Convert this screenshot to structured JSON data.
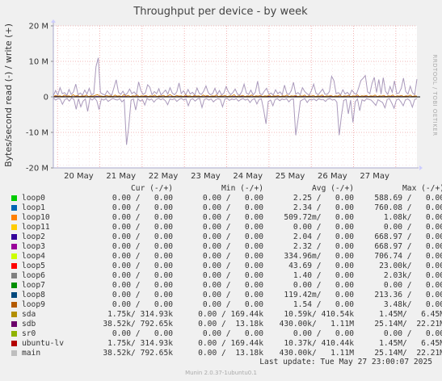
{
  "chart_data": {
    "type": "line",
    "title": "Throughput per device - by week",
    "ylabel": "Bytes/second read (-) / write (+)",
    "side_label": "RRDTOOL / TOBI OETIKER",
    "ylim": [
      -20000000,
      20000000
    ],
    "yticks": [
      {
        "label": "20 M",
        "value": 20000000
      },
      {
        "label": "10 M",
        "value": 10000000
      },
      {
        "label": "0",
        "value": 0
      },
      {
        "label": "-10 M",
        "value": -10000000
      },
      {
        "label": "-20 M",
        "value": -20000000
      }
    ],
    "xticks": [
      "20 May",
      "21 May",
      "22 May",
      "23 May",
      "24 May",
      "25 May",
      "26 May",
      "27 May"
    ],
    "grid": true,
    "series": [
      {
        "name": "main",
        "color": "#aa99bb",
        "direction": "write",
        "values": [
          0.3,
          1.8,
          0.5,
          2.6,
          0.9,
          1.2,
          0.4,
          2.1,
          0.7,
          1.4,
          3.6,
          0.6,
          1.1,
          0.5,
          1.9,
          0.8,
          2.4,
          0.6,
          0.9,
          8.5,
          11,
          1.2,
          0.8,
          0.5,
          1.7,
          0.9,
          0.4,
          2.6,
          4.8,
          1.3,
          0.7,
          1.6,
          0.5,
          1.1,
          2.2,
          0.9,
          1.4,
          0.6,
          4.2,
          1.8,
          0.7,
          1.1,
          3.4,
          2.7,
          0.6,
          1.5,
          0.9,
          2.3,
          0.5,
          1.2,
          1.9,
          0.8,
          2.6,
          1.1,
          0.6,
          1.4,
          3.9,
          0.9,
          1.7,
          0.6,
          2.1,
          0.8,
          1.3,
          0.5,
          2.5,
          1.0,
          0.7,
          1.6,
          3.1,
          1.2,
          0.6,
          0.9,
          2.4,
          0.7,
          1.8,
          0.5,
          1.1,
          2.9,
          1.4,
          0.6,
          1.2,
          2.2,
          0.8,
          0.5,
          1.5,
          3.6,
          1.1,
          0.7,
          1.9,
          0.6,
          1.3,
          4.4,
          0.9,
          0.6,
          1.6,
          2.4,
          0.8,
          1.1,
          0.5,
          2.0,
          0.9,
          1.4,
          0.6,
          3.3,
          1.0,
          0.7,
          1.7,
          4.1,
          0.8,
          1.2,
          0.6,
          2.6,
          1.5,
          0.9,
          0.5,
          1.8,
          3.6,
          1.1,
          0.6,
          1.4,
          2.2,
          0.8,
          0.7,
          1.5,
          5.8,
          4.6,
          0.9,
          1.2,
          0.6,
          2.0,
          0.8,
          1.3,
          0.5,
          1.9,
          1.1,
          0.7,
          2.5,
          4.6,
          5.2,
          6.0,
          1.4,
          0.9,
          3.8,
          5.5,
          1.2,
          4.9,
          0.8,
          5.4,
          1.6,
          0.7,
          2.9,
          1.3,
          4.5,
          0.9,
          1.1,
          2.4,
          5.3,
          1.5,
          0.8,
          3.0,
          1.2,
          0.6,
          5.0
        ]
      },
      {
        "name": "main",
        "color": "#aa99bb",
        "direction": "read",
        "values": [
          0.2,
          0.9,
          0.5,
          0.6,
          2.1,
          0.8,
          0.4,
          1.2,
          0.3,
          0.7,
          3.5,
          0.5,
          2.8,
          1.2,
          0.6,
          4.1,
          0.4,
          0.9,
          0.3,
          1.1,
          3.6,
          0.6,
          0.9,
          0.5,
          1.3,
          0.8,
          0.4,
          0.7,
          0.9,
          0.5,
          1.4,
          0.8,
          13.5,
          8.2,
          0.9,
          0.6,
          3.7,
          0.5,
          1.2,
          0.8,
          2.3,
          0.4,
          0.9,
          0.6,
          1.5,
          0.7,
          0.4,
          0.8,
          0.5,
          1.1,
          2.2,
          0.6,
          0.8,
          0.5,
          1.3,
          0.7,
          0.4,
          0.9,
          0.6,
          2.5,
          0.8,
          0.5,
          1.2,
          0.6,
          0.4,
          3.0,
          0.7,
          0.5,
          0.9,
          0.6,
          1.4,
          0.8,
          0.5,
          0.7,
          2.8,
          0.6,
          0.4,
          1.0,
          0.6,
          0.8,
          0.5,
          1.2,
          0.7,
          0.5,
          0.9,
          0.6,
          1.6,
          0.8,
          0.5,
          2.0,
          0.7,
          0.6,
          3.8,
          7.6,
          1.3,
          0.9,
          2.5,
          0.7,
          0.5,
          1.1,
          0.6,
          0.8,
          0.5,
          1.4,
          0.7,
          0.6,
          10.8,
          6.5,
          1.2,
          0.8,
          0.5,
          1.6,
          0.7,
          0.9,
          0.6,
          1.1,
          0.5,
          0.8,
          0.7,
          1.3,
          0.6,
          0.5,
          0.9,
          0.7,
          1.5,
          10.8,
          5.2,
          1.0,
          0.7,
          4.8,
          0.9,
          7.2,
          1.4,
          0.6,
          3.9,
          0.8,
          1.2,
          0.5,
          0.7,
          0.9,
          1.6,
          2.4,
          0.8,
          1.2,
          1.6,
          3.1,
          0.7,
          0.5,
          1.8,
          3.2,
          0.9,
          0.6,
          1.4,
          2.5,
          0.8,
          0.6,
          1.1,
          2.9,
          0.7,
          0.5
        ]
      },
      {
        "name": "sda",
        "color": "#cc7700",
        "direction": "write",
        "values": [
          0.1,
          0.4,
          0.2,
          0.3,
          0.1,
          0.5,
          0.2,
          0.3,
          0.1,
          0.6,
          0.2,
          0.4,
          0.1,
          0.3,
          0.2,
          0.5,
          0.1,
          0.3,
          0.2,
          0.4,
          0.6,
          0.3,
          0.2,
          0.1,
          0.4,
          0.2,
          0.3,
          0.1,
          0.5,
          0.2,
          0.3,
          0.1,
          0.6,
          0.2,
          0.4,
          0.1,
          0.3,
          0.2,
          0.5,
          0.1,
          0.3,
          0.2,
          0.4,
          0.1,
          0.3,
          0.2,
          0.5,
          0.1,
          0.3,
          0.2,
          0.4,
          0.1,
          0.3,
          0.6,
          0.2,
          0.1,
          0.4,
          0.2,
          0.3,
          0.1,
          0.5,
          0.2,
          0.3,
          0.1,
          0.4,
          0.2,
          0.3,
          0.1,
          0.5,
          0.2,
          0.4,
          0.1,
          0.3,
          0.2,
          0.5,
          0.1,
          0.3,
          0.2,
          0.4,
          0.1,
          0.3,
          0.2,
          0.6,
          0.1,
          0.3,
          0.2,
          0.4,
          0.1,
          0.3,
          0.2,
          0.5,
          0.1,
          0.3,
          0.2,
          0.4,
          0.1,
          0.3,
          0.2,
          0.5,
          0.1,
          0.3,
          0.2,
          0.4,
          0.1,
          0.3,
          0.2,
          0.5,
          0.1,
          0.3,
          0.2,
          0.4,
          0.1,
          0.3,
          0.2,
          0.5,
          0.1,
          0.3,
          0.2,
          0.4,
          0.1,
          0.3,
          0.2,
          0.5,
          0.1,
          0.3,
          0.2,
          0.4,
          0.1,
          0.3,
          0.2,
          0.5,
          0.1,
          0.3,
          0.2,
          0.4,
          0.1,
          0.3,
          0.2,
          0.5,
          0.1,
          0.3,
          0.2,
          0.4,
          0.1,
          0.3,
          0.2,
          0.5,
          0.1,
          0.3,
          0.2,
          0.4,
          0.1,
          0.3,
          0.2,
          0.5,
          0.1,
          0.3,
          0.2,
          0.4,
          0.1,
          0.3,
          0.2,
          0.5,
          0.1,
          0.3,
          0.2
        ]
      },
      {
        "name": "sdb",
        "color": "#660099",
        "direction": "write",
        "values": [
          0.05,
          0.1,
          0.08,
          0.05,
          0.12,
          0.06,
          0.05,
          0.1,
          0.07,
          0.05,
          0.09,
          0.06,
          0.05,
          0.11,
          0.07,
          0.05,
          0.08,
          0.06,
          0.05,
          0.1,
          0.07,
          0.05,
          0.12,
          0.06,
          0.05,
          0.09,
          0.07,
          0.05,
          0.1,
          0.06,
          0.05,
          0.08,
          0.07,
          0.05,
          0.11,
          0.06,
          0.05,
          0.09,
          0.07,
          0.05,
          0.1,
          0.06,
          0.05,
          0.08,
          0.07,
          0.05,
          0.12,
          0.06,
          0.05,
          0.09,
          0.07,
          0.05,
          0.1,
          0.06,
          0.05,
          0.08,
          0.07,
          0.05,
          0.11,
          0.06,
          0.05,
          0.09,
          0.07,
          0.05,
          0.1,
          0.06,
          0.05,
          0.08,
          0.07,
          0.05,
          0.12,
          0.06,
          0.05,
          0.09,
          0.07,
          0.05,
          0.1,
          0.06,
          0.05,
          0.08,
          0.07,
          0.05,
          0.11,
          0.06,
          0.05,
          0.09,
          0.07,
          0.05,
          0.1,
          0.06,
          0.05,
          0.08,
          0.07,
          0.05,
          0.12,
          0.06,
          0.05,
          0.09,
          0.07,
          0.05,
          0.1,
          0.06,
          0.05,
          0.08,
          0.07,
          0.05,
          0.11,
          0.06,
          0.05,
          0.09,
          0.07,
          0.05,
          0.1,
          0.06,
          0.05,
          0.08,
          0.07,
          0.05,
          0.12,
          0.06,
          0.05,
          0.09,
          0.07,
          0.05,
          0.1,
          0.06,
          0.05,
          0.08,
          0.07,
          0.05,
          0.11,
          0.06,
          0.05,
          0.09,
          0.07,
          0.05,
          0.1,
          0.06,
          0.05,
          0.08,
          0.07,
          0.05,
          0.12,
          0.06,
          0.05,
          0.09,
          0.07,
          0.05,
          0.1,
          0.06,
          0.05,
          0.08,
          0.07,
          0.05,
          0.11,
          0.06,
          0.05,
          0.09,
          0.07,
          0.05
        ]
      }
    ]
  },
  "legend": {
    "header": {
      "cur": "Cur (-/+)",
      "min": "Min (-/+)",
      "avg": "Avg (-/+)",
      "max": "Max (-/+)"
    },
    "rows": [
      {
        "name": "loop0",
        "color": "#00cc00",
        "cur": "0.00 /   0.00",
        "min": "0.00 /   0.00",
        "avg": "2.25 /   0.00",
        "max": "588.69 /   0.00"
      },
      {
        "name": "loop1",
        "color": "#0066b3",
        "cur": "0.00 /   0.00",
        "min": "0.00 /   0.00",
        "avg": "2.34 /   0.00",
        "max": "760.08 /   0.00"
      },
      {
        "name": "loop10",
        "color": "#ff8000",
        "cur": "0.00 /   0.00",
        "min": "0.00 /   0.00",
        "avg": "509.72m/   0.00",
        "max": "1.08k/   0.00"
      },
      {
        "name": "loop11",
        "color": "#ffcc00",
        "cur": "0.00 /   0.00",
        "min": "0.00 /   0.00",
        "avg": "0.00 /   0.00",
        "max": "0.00 /   0.00"
      },
      {
        "name": "loop2",
        "color": "#330099",
        "cur": "0.00 /   0.00",
        "min": "0.00 /   0.00",
        "avg": "2.04 /   0.00",
        "max": "668.97 /   0.00"
      },
      {
        "name": "loop3",
        "color": "#990099",
        "cur": "0.00 /   0.00",
        "min": "0.00 /   0.00",
        "avg": "2.32 /   0.00",
        "max": "668.97 /   0.00"
      },
      {
        "name": "loop4",
        "color": "#ccff00",
        "cur": "0.00 /   0.00",
        "min": "0.00 /   0.00",
        "avg": "334.96m/   0.00",
        "max": "706.74 /   0.00"
      },
      {
        "name": "loop5",
        "color": "#ff0000",
        "cur": "0.00 /   0.00",
        "min": "0.00 /   0.00",
        "avg": "43.69 /   0.00",
        "max": "23.00k/   0.00"
      },
      {
        "name": "loop6",
        "color": "#808080",
        "cur": "0.00 /   0.00",
        "min": "0.00 /   0.00",
        "avg": "1.40 /   0.00",
        "max": "2.03k/   0.00"
      },
      {
        "name": "loop7",
        "color": "#008f00",
        "cur": "0.00 /   0.00",
        "min": "0.00 /   0.00",
        "avg": "0.00 /   0.00",
        "max": "0.00 /   0.00"
      },
      {
        "name": "loop8",
        "color": "#00487d",
        "cur": "0.00 /   0.00",
        "min": "0.00 /   0.00",
        "avg": "119.42m/   0.00",
        "max": "213.36 /   0.00"
      },
      {
        "name": "loop9",
        "color": "#b35a00",
        "cur": "0.00 /   0.00",
        "min": "0.00 /   0.00",
        "avg": "1.54 /   0.00",
        "max": "3.48k/   0.00"
      },
      {
        "name": "sda",
        "color": "#b38f00",
        "cur": "1.75k/ 314.93k",
        "min": "0.00 / 169.44k",
        "avg": "10.59k/ 410.54k",
        "max": "1.45M/   6.45M"
      },
      {
        "name": "sdb",
        "color": "#6b006b",
        "cur": "38.52k/ 792.65k",
        "min": "0.00 /  13.18k",
        "avg": "430.00k/   1.11M",
        "max": "25.14M/  22.21M"
      },
      {
        "name": "sr0",
        "color": "#8fb300",
        "cur": "0.00 /   0.00",
        "min": "0.00 /   0.00",
        "avg": "0.00 /   0.00",
        "max": "0.00 /   0.00"
      },
      {
        "name": "ubuntu-lv",
        "color": "#b30000",
        "cur": "1.75k/ 314.93k",
        "min": "0.00 / 169.44k",
        "avg": "10.37k/ 410.44k",
        "max": "1.45M/   6.45M"
      },
      {
        "name": "main",
        "color": "#bebebe",
        "cur": "38.52k/ 792.65k",
        "min": "0.00 /  13.18k",
        "avg": "430.00k/   1.11M",
        "max": "25.14M/  22.21M"
      }
    ]
  },
  "footer": {
    "last_update": "Last update: Tue May 27 23:00:07 2025",
    "version": "Munin 2.0.37-1ubuntu0.1"
  }
}
